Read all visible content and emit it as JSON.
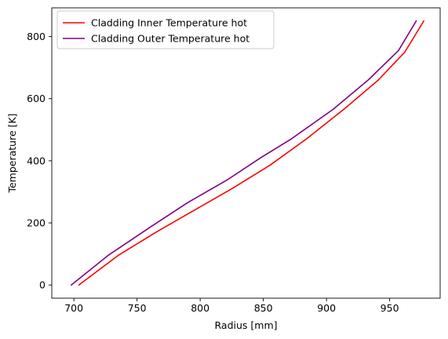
{
  "chart_data": {
    "type": "line",
    "xlabel": "Radius [mm]",
    "ylabel": "Temperature [K]",
    "xlim": [
      682.5,
      990
    ],
    "ylim": [
      -42.5,
      892.5
    ],
    "xticks": [
      700,
      750,
      800,
      850,
      900,
      950
    ],
    "yticks": [
      0,
      200,
      400,
      600,
      800
    ],
    "grid": false,
    "legend_position": "top-left",
    "series": [
      {
        "name": "Cladding Inner Temperature hot",
        "color": "#ff0000",
        "x": [
          704,
          735,
          765,
          795,
          825,
          855,
          884,
          915,
          941,
          962,
          977
        ],
        "y": [
          0,
          95,
          170,
          240,
          310,
          385,
          470,
          570,
          660,
          750,
          850
        ]
      },
      {
        "name": "Cladding Outer Temperature hot",
        "color": "#800080",
        "x": [
          698,
          727,
          760,
          790,
          822,
          848,
          872,
          905,
          933,
          957,
          971
        ],
        "y": [
          0,
          95,
          185,
          265,
          340,
          410,
          470,
          565,
          660,
          755,
          850
        ]
      }
    ]
  }
}
